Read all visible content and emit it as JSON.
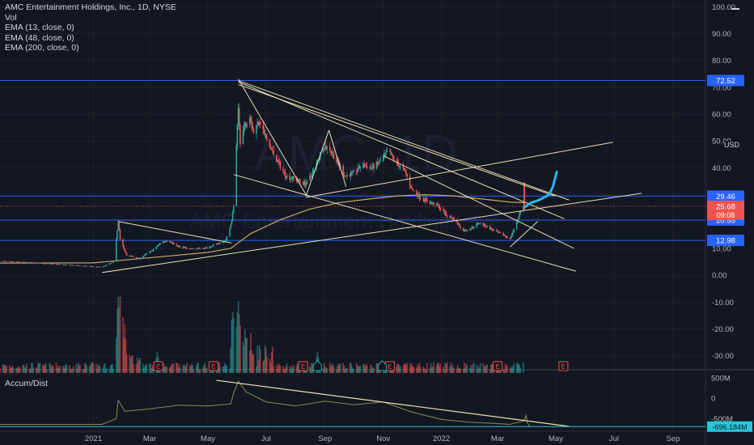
{
  "header": {
    "symbol_line": "AMC Entertainment Holdings, Inc., 1D, NYSE",
    "indicators": [
      "Vol",
      "EMA (13, close, 0)",
      "EMA (48, close, 0)",
      "EMA (200, close, 0)"
    ]
  },
  "watermark": {
    "big": "AMC, 1D",
    "sub": "AMC Entertainment Holdings, Inc."
  },
  "currency": "USD",
  "lower_pane": {
    "title": "Accum/Dist",
    "axis_labels": [
      "500M",
      "0",
      "-500M"
    ],
    "current_value": "-696.184M"
  },
  "colors": {
    "up": "#26a69a",
    "down": "#ef5350",
    "hline": "#2962ff",
    "trend": "#e8e0b0",
    "forecast": "#29b6f6",
    "ema": "#c9a96e",
    "ad_line": "#8d8a50"
  },
  "chart_data": {
    "type": "line",
    "title": "AMC Entertainment Holdings, Inc., 1D, NYSE",
    "y_axis_ticks": [
      100,
      90,
      80,
      70,
      60,
      50,
      40,
      30,
      20,
      10,
      0,
      -10,
      -20,
      -30
    ],
    "y_axis_tick_labels": [
      "100.00",
      "90.00",
      "80.00",
      "70.00",
      "60.00",
      "50.00",
      "40.00",
      "30.00",
      "20.00",
      "10.00",
      "0.00",
      "-10.00",
      "-20.00",
      "-30.00"
    ],
    "ylim": [
      -31,
      101
    ],
    "x_tick_labels": [
      "2021",
      "Mar",
      "May",
      "Jul",
      "Sep",
      "Nov",
      "2022",
      "Mar",
      "May",
      "Jul",
      "Sep"
    ],
    "x_tick_dates": [
      "2021-01-01",
      "2021-03-01",
      "2021-05-01",
      "2021-07-01",
      "2021-09-01",
      "2021-11-01",
      "2022-01-01",
      "2022-03-01",
      "2022-05-01",
      "2022-07-01",
      "2022-09-01"
    ],
    "xlim": [
      "2020-09-25",
      "2022-10-05"
    ],
    "price_path": [
      [
        "2020-09-25",
        5.2
      ],
      [
        "2020-11-01",
        4.6
      ],
      [
        "2020-12-20",
        3.5
      ],
      [
        "2021-01-10",
        3.0
      ],
      [
        "2021-01-22",
        5.0
      ],
      [
        "2021-01-27",
        19.9
      ],
      [
        "2021-01-29",
        13.3
      ],
      [
        "2021-02-05",
        7.5
      ],
      [
        "2021-02-18",
        6.2
      ],
      [
        "2021-03-05",
        9.5
      ],
      [
        "2021-03-12",
        12.0
      ],
      [
        "2021-03-20",
        13.0
      ],
      [
        "2021-04-01",
        10.5
      ],
      [
        "2021-04-15",
        9.8
      ],
      [
        "2021-04-30",
        10.2
      ],
      [
        "2021-05-10",
        11.5
      ],
      [
        "2021-05-20",
        13.0
      ],
      [
        "2021-05-26",
        20.0
      ],
      [
        "2021-05-28",
        26.0
      ],
      [
        "2021-06-02",
        62.0
      ],
      [
        "2021-06-04",
        50.0
      ],
      [
        "2021-06-08",
        55.0
      ],
      [
        "2021-06-14",
        60.0
      ],
      [
        "2021-06-18",
        53.0
      ],
      [
        "2021-06-24",
        58.0
      ],
      [
        "2021-07-02",
        50.0
      ],
      [
        "2021-07-12",
        43.0
      ],
      [
        "2021-07-22",
        37.0
      ],
      [
        "2021-08-02",
        35.5
      ],
      [
        "2021-08-12",
        34.0
      ],
      [
        "2021-08-20",
        39.0
      ],
      [
        "2021-08-30",
        48.0
      ],
      [
        "2021-09-06",
        47.0
      ],
      [
        "2021-09-14",
        42.0
      ],
      [
        "2021-09-22",
        37.0
      ],
      [
        "2021-10-01",
        38.0
      ],
      [
        "2021-10-10",
        41.0
      ],
      [
        "2021-10-20",
        40.0
      ],
      [
        "2021-10-28",
        42.0
      ],
      [
        "2021-11-06",
        46.0
      ],
      [
        "2021-11-15",
        42.0
      ],
      [
        "2021-11-24",
        38.5
      ],
      [
        "2021-12-01",
        32.0
      ],
      [
        "2021-12-10",
        29.0
      ],
      [
        "2021-12-20",
        27.0
      ],
      [
        "2021-12-28",
        26.0
      ],
      [
        "2022-01-06",
        22.5
      ],
      [
        "2022-01-14",
        21.0
      ],
      [
        "2022-01-24",
        16.5
      ],
      [
        "2022-02-01",
        17.5
      ],
      [
        "2022-02-10",
        19.5
      ],
      [
        "2022-02-18",
        18.0
      ],
      [
        "2022-02-28",
        16.0
      ],
      [
        "2022-03-10",
        14.5
      ],
      [
        "2022-03-14",
        13.5
      ],
      [
        "2022-03-18",
        17.0
      ],
      [
        "2022-03-24",
        23.0
      ],
      [
        "2022-03-28",
        25.68
      ]
    ],
    "spike_bars": [
      [
        "2022-03-29",
        34.5,
        24.5
      ]
    ],
    "ema_200_path": [
      [
        "2020-09-25",
        4.5
      ],
      [
        "2021-01-01",
        4.6
      ],
      [
        "2021-03-01",
        6.5
      ],
      [
        "2021-05-01",
        8.5
      ],
      [
        "2021-05-25",
        10.0
      ],
      [
        "2021-06-15",
        15.5
      ],
      [
        "2021-07-15",
        20.5
      ],
      [
        "2021-08-15",
        24.5
      ],
      [
        "2021-09-15",
        27.0
      ],
      [
        "2021-10-15",
        28.3
      ],
      [
        "2021-11-15",
        29.5
      ],
      [
        "2021-12-15",
        30.0
      ],
      [
        "2022-01-15",
        29.5
      ],
      [
        "2022-02-15",
        28.3
      ],
      [
        "2022-03-15",
        27.2
      ],
      [
        "2022-03-29",
        27.0
      ]
    ],
    "horizontal_levels": [
      {
        "value": 72.52,
        "label": "72.52"
      },
      {
        "value": 29.46,
        "label": "29.46"
      },
      {
        "value": 20.55,
        "label": "20.55"
      },
      {
        "value": 12.98,
        "label": "12.98"
      }
    ],
    "last_price": {
      "value": 25.68,
      "label": "25.68",
      "countdown": "09:08"
    },
    "trendlines": [
      [
        [
          "2021-01-10",
          1.0
        ],
        [
          "2022-07-30",
          30.5
        ]
      ],
      [
        [
          "2021-01-27",
          20.0
        ],
        [
          "2021-05-26",
          12.0
        ]
      ],
      [
        [
          "2021-06-02",
          73.0
        ],
        [
          "2021-08-12",
          30.0
        ]
      ],
      [
        [
          "2021-06-02",
          72.5
        ],
        [
          "2022-05-15",
          28.0
        ]
      ],
      [
        [
          "2021-06-02",
          72.0
        ],
        [
          "2022-05-10",
          21.0
        ]
      ],
      [
        [
          "2021-06-02",
          71.0
        ],
        [
          "2022-04-30",
          29.5
        ]
      ],
      [
        [
          "2021-05-28",
          37.5
        ],
        [
          "2022-05-22",
          1.5
        ]
      ],
      [
        [
          "2021-08-12",
          29.0
        ],
        [
          "2022-06-30",
          49.5
        ]
      ],
      [
        [
          "2021-08-12",
          29.5
        ],
        [
          "2021-09-05",
          54.0
        ]
      ],
      [
        [
          "2021-09-05",
          54.0
        ],
        [
          "2021-09-23",
          33.0
        ]
      ],
      [
        [
          "2021-11-01",
          44.5
        ],
        [
          "2022-05-20",
          10.0
        ]
      ],
      [
        [
          "2022-03-14",
          10.5
        ],
        [
          "2022-04-12",
          20.0
        ]
      ]
    ],
    "forecast_path": [
      [
        "2022-03-30",
        25.5
      ],
      [
        "2022-04-05",
        27.0
      ],
      [
        "2022-04-12",
        27.8
      ],
      [
        "2022-04-18",
        28.8
      ],
      [
        "2022-04-24",
        30.0
      ],
      [
        "2022-04-28",
        33.0
      ],
      [
        "2022-05-02",
        38.5
      ]
    ],
    "volume_spikes": [
      [
        "2021-01-27",
        60
      ],
      [
        "2021-01-29",
        56
      ],
      [
        "2021-02-01",
        39
      ],
      [
        "2021-02-03",
        30
      ],
      [
        "2021-03-09",
        18
      ],
      [
        "2021-05-27",
        42
      ],
      [
        "2021-06-02",
        52
      ],
      [
        "2021-06-04",
        40
      ],
      [
        "2021-06-09",
        30
      ],
      [
        "2021-06-15",
        22
      ],
      [
        "2021-08-24",
        18
      ],
      [
        "2022-03-29",
        12
      ]
    ],
    "earnings_markers": [
      "2021-03-10",
      "2021-05-07",
      "2021-08-09",
      "2021-11-08",
      "2022-03-01",
      "2022-05-09"
    ],
    "dividend_markers": [
      "2021-08-24",
      "2021-10-31"
    ],
    "ad_ylim": [
      -750,
      600
    ],
    "ad_path": [
      [
        "2020-09-25",
        -640
      ],
      [
        "2021-01-10",
        -640
      ],
      [
        "2021-01-25",
        -500
      ],
      [
        "2021-01-27",
        -50
      ],
      [
        "2021-02-03",
        -320
      ],
      [
        "2021-03-01",
        -260
      ],
      [
        "2021-04-01",
        -170
      ],
      [
        "2021-05-01",
        -190
      ],
      [
        "2021-05-25",
        -140
      ],
      [
        "2021-05-28",
        120
      ],
      [
        "2021-06-02",
        420
      ],
      [
        "2021-06-10",
        160
      ],
      [
        "2021-07-01",
        -90
      ],
      [
        "2021-08-01",
        -190
      ],
      [
        "2021-09-01",
        -70
      ],
      [
        "2021-10-01",
        -160
      ],
      [
        "2021-11-01",
        -90
      ],
      [
        "2021-12-01",
        -340
      ],
      [
        "2022-01-01",
        -520
      ],
      [
        "2022-02-01",
        -590
      ],
      [
        "2022-03-01",
        -620
      ],
      [
        "2022-03-14",
        -640
      ],
      [
        "2022-03-28",
        -560
      ],
      [
        "2022-03-31",
        -420
      ],
      [
        "2022-04-01",
        -600
      ],
      [
        "2022-04-04",
        -696
      ]
    ],
    "ad_trendline": [
      [
        "2021-05-10",
        440
      ],
      [
        "2022-05-15",
        -690
      ]
    ]
  }
}
